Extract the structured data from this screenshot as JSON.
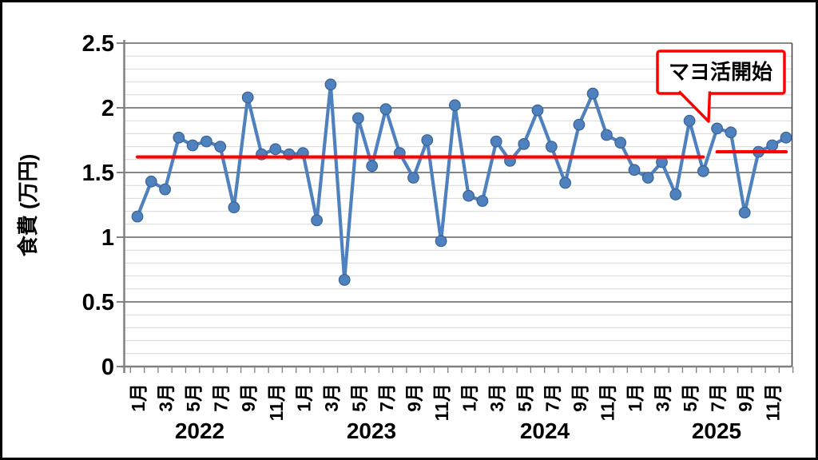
{
  "chart_data": {
    "type": "line",
    "title": "",
    "y_axis": {
      "title": "食費 (万円)",
      "min": 0,
      "max": 2.5,
      "major_step": 0.5,
      "minor_step": 0.1,
      "tick_labels": [
        "0",
        "0.5",
        "1",
        "1.5",
        "2",
        "2.5"
      ]
    },
    "x_axis": {
      "month_tick_labels": [
        "1月",
        "3月",
        "5月",
        "7月",
        "9月",
        "11月"
      ],
      "years": [
        "2022",
        "2023",
        "2024",
        "2025"
      ],
      "months_per_year": 12
    },
    "series": [
      {
        "name": "食費",
        "color": "#4E81BD",
        "marker_border_color": "#3A6395",
        "values_by_year": {
          "2022": [
            1.16,
            1.43,
            1.37,
            1.77,
            1.71,
            1.74,
            1.7,
            1.23,
            2.08,
            1.64,
            1.68,
            1.64
          ],
          "2023": [
            1.65,
            1.13,
            2.18,
            0.67,
            1.92,
            1.55,
            1.99,
            1.65,
            1.46,
            1.75,
            0.97,
            2.02
          ],
          "2024": [
            1.32,
            1.28,
            1.74,
            1.59,
            1.72,
            1.98,
            1.7,
            1.42,
            1.87,
            2.11,
            1.79,
            1.73
          ],
          "2025": [
            1.52,
            1.46,
            1.58,
            1.33,
            1.9,
            1.51,
            1.84,
            1.81,
            1.19,
            1.66,
            1.71,
            1.77
          ]
        }
      }
    ],
    "reference_lines": [
      {
        "value": 1.62,
        "start_index": 0,
        "end_index": 41,
        "color": "#FF0000"
      },
      {
        "value": 1.66,
        "start_index": 42,
        "end_index": 47,
        "color": "#FF0000"
      }
    ],
    "annotation": {
      "text": "マヨ活開始",
      "border_color": "#FF0000",
      "fill_color": "#FFFFFF",
      "text_color": "#000000",
      "points_to_year": "2025",
      "points_to_month_label": "7月"
    },
    "colors": {
      "background": "#FFFFFF",
      "figure_border": "#000000",
      "axis_line": "#808080",
      "major_gridline": "#404040",
      "minor_gridline": "#D9D9D9",
      "plot_right_border": "#404040",
      "text": "#000000"
    },
    "grid": {
      "major": true,
      "minor": true
    },
    "legend": {
      "visible": false
    }
  }
}
